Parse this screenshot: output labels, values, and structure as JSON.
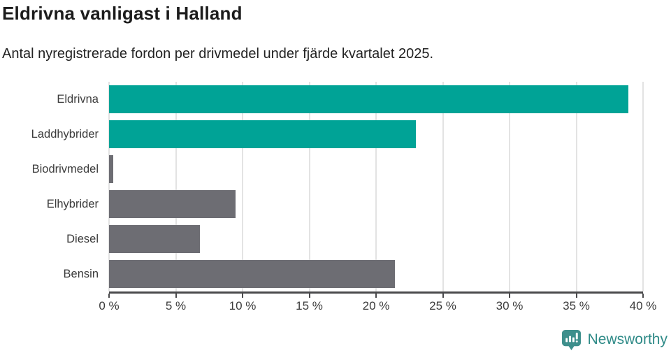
{
  "header": {
    "title": "Eldrivna vanligast i Halland",
    "subtitle": "Antal nyregistrerade fordon per drivmedel under fjärde kvartalet 2025."
  },
  "chart_data": {
    "type": "bar",
    "orientation": "horizontal",
    "title": "Eldrivna vanligast i Halland",
    "subtitle": "Antal nyregistrerade fordon per drivmedel under fjärde kvartalet 2025.",
    "categories": [
      "Eldrivna",
      "Laddhybrider",
      "Biodrivmedel",
      "Elhybrider",
      "Diesel",
      "Bensin"
    ],
    "values": [
      38.9,
      23.0,
      0.3,
      9.5,
      6.8,
      21.4
    ],
    "unit": "%",
    "xlim": [
      0,
      40
    ],
    "x_ticks": [
      {
        "value": 0,
        "label": "0 %"
      },
      {
        "value": 5,
        "label": "5 %"
      },
      {
        "value": 10,
        "label": "10 %"
      },
      {
        "value": 15,
        "label": "15 %"
      },
      {
        "value": 20,
        "label": "20 %"
      },
      {
        "value": 25,
        "label": "25 %"
      },
      {
        "value": 30,
        "label": "30 %"
      },
      {
        "value": 35,
        "label": "35 %"
      },
      {
        "value": 40,
        "label": "40 %"
      }
    ],
    "grid": "vertical",
    "legend": "none",
    "data_labels": "none",
    "colors": {
      "highlight": "#00a396",
      "default": "#6d6d73",
      "gridline": "#e3e3e3",
      "axis": "#4a4a4c"
    },
    "bar_colors": [
      "#00a396",
      "#00a396",
      "#6d6d73",
      "#6d6d73",
      "#6d6d73",
      "#6d6d73"
    ]
  },
  "footer": {
    "brand": "Newsworthy",
    "brand_color": "#2e8a87",
    "logo_icon": "newsworthy-speech-bubble-chart-icon"
  }
}
